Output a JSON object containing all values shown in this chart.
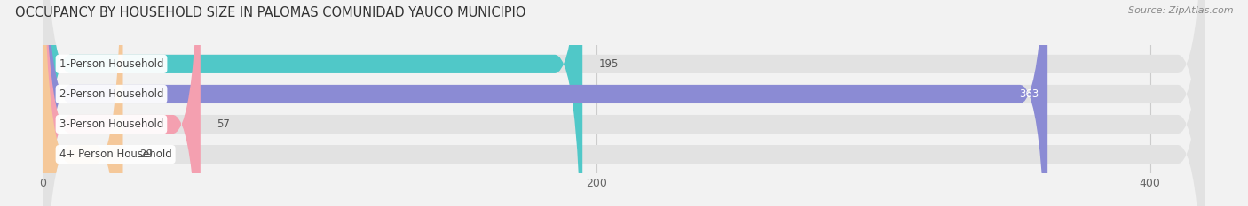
{
  "title": "OCCUPANCY BY HOUSEHOLD SIZE IN PALOMAS COMUNIDAD YAUCO MUNICIPIO",
  "source": "Source: ZipAtlas.com",
  "categories": [
    "1-Person Household",
    "2-Person Household",
    "3-Person Household",
    "4+ Person Household"
  ],
  "values": [
    195,
    363,
    57,
    29
  ],
  "bar_colors": [
    "#50c8c8",
    "#8b8bd4",
    "#f4a0b0",
    "#f5c899"
  ],
  "background_color": "#f2f2f2",
  "bar_bg_color": "#e2e2e2",
  "xlim": [
    -10,
    430
  ],
  "xticks": [
    0,
    200,
    400
  ],
  "title_fontsize": 10.5,
  "label_fontsize": 8.5,
  "value_fontsize": 8.5
}
